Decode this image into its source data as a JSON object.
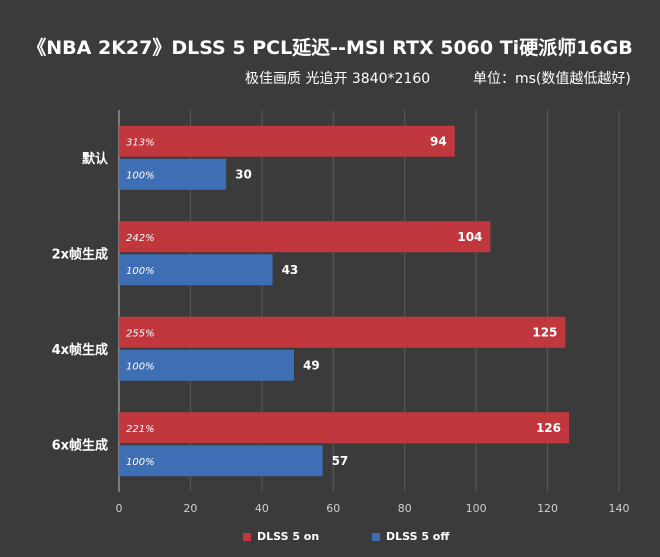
{
  "header": {
    "title": "《NBA 2K27》DLSS 5 PCL延迟--MSI RTX 5060 Ti硬派师16GB",
    "subtitle_left": "极佳画质 光追开 3840*2160",
    "subtitle_right": "单位：ms(数值越低越好)"
  },
  "chart_data": {
    "type": "bar",
    "orientation": "horizontal",
    "categories": [
      "默认",
      "2x帧生成",
      "4x帧生成",
      "6x帧生成"
    ],
    "series": [
      {
        "name": "DLSS 5 on",
        "color": "#c0373e",
        "values": [
          94,
          104,
          125,
          126
        ],
        "percent_labels": [
          "313%",
          "242%",
          "255%",
          "221%"
        ]
      },
      {
        "name": "DLSS 5 off",
        "color": "#3e6fb5",
        "values": [
          30,
          43,
          49,
          57
        ],
        "percent_labels": [
          "100%",
          "100%",
          "100%",
          "100%"
        ]
      }
    ],
    "xlim": [
      0,
      140
    ],
    "x_ticks": [
      "0",
      "20",
      "40",
      "60",
      "80",
      "100",
      "120",
      "140"
    ],
    "grid": true,
    "legend_position": "bottom"
  }
}
